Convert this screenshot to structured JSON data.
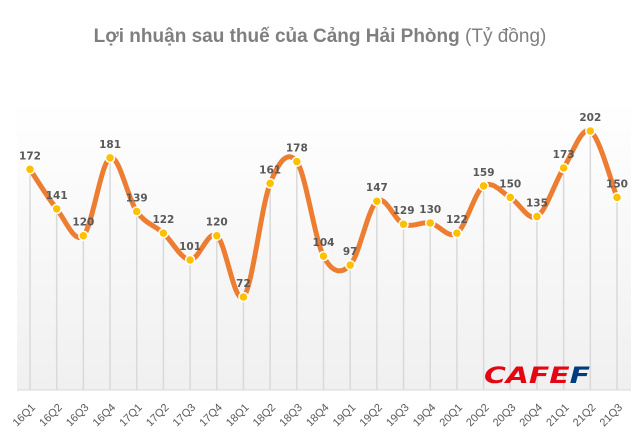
{
  "title": {
    "part1": "Lợi nhuận sau thuế của ",
    "part2": "Cảng Hải Phòng",
    "part3": " (Tỷ đồng)"
  },
  "watermark": {
    "text_red": "CAFE",
    "text_blue": "F",
    "red": "#e30613",
    "blue": "#003a80"
  },
  "colors": {
    "line": "#ed7d31",
    "marker": "#ffc000",
    "grid": "#d9d9d9"
  },
  "chart_data": {
    "type": "line",
    "title": "Lợi nhuận sau thuế của Cảng Hải Phòng (Tỷ đồng)",
    "xlabel": "",
    "ylabel": "Tỷ đồng",
    "categories": [
      "16Q1",
      "16Q2",
      "16Q3",
      "16Q4",
      "17Q1",
      "17Q2",
      "17Q3",
      "17Q4",
      "18Q1",
      "18Q2",
      "18Q3",
      "18Q4",
      "19Q1",
      "19Q2",
      "19Q3",
      "19Q4",
      "20Q1",
      "20Q2",
      "20Q3",
      "20Q4",
      "21Q1",
      "21Q2",
      "21Q3"
    ],
    "series": [
      {
        "name": "Lợi nhuận sau thuế",
        "values": [
          172,
          141,
          120,
          181,
          139,
          122,
          101,
          120,
          72,
          161,
          178,
          104,
          97,
          147,
          129,
          130,
          122,
          159,
          150,
          135,
          173,
          202,
          150
        ]
      }
    ],
    "smooth": true,
    "data_labels": true,
    "grid": "vertical",
    "legend": "none"
  }
}
